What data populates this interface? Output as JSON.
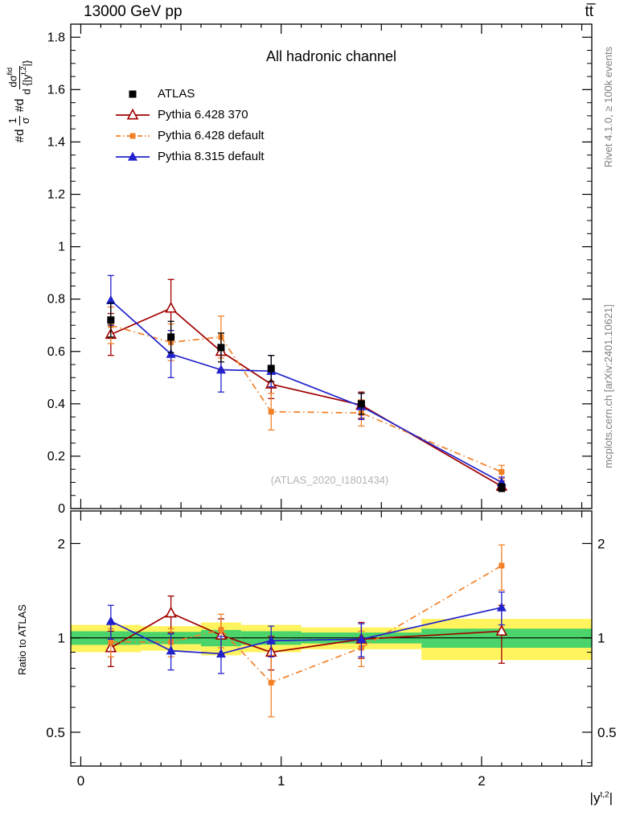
{
  "header": {
    "beam_label": "13000 GeV pp",
    "process_label": "tt̅"
  },
  "plot": {
    "title": "All hadronic channel",
    "watermark": "(ATLAS_2020_I1801434)",
    "xlabel": {
      "pre": "|y",
      "sup": "t,2",
      "post": "|"
    },
    "ylabel_main": {
      "d1": "#d",
      "frac1_num": "1",
      "frac1_den": "σ",
      "d2": "#d",
      "frac2_num_base": "dσ",
      "frac2_num_sup": "fid",
      "frac2_den_pre": "d {|y",
      "frac2_den_sup": "t,2",
      "frac2_den_post": "|}"
    },
    "ylabel_ratio": "Ratio to ATLAS"
  },
  "side_labels": {
    "rivet": "Rivet 4.1.0, ≥ 100k events",
    "mcplots": "mcplots.cern.ch [arXiv:2401.10621]"
  },
  "chart_data": {
    "type": "scatter",
    "title": "All hadronic channel",
    "xlabel": "|y^{t,2}|",
    "ylabel": "1/sigma dsigma^fid / d{|y^{t,2}|}",
    "xlim": [
      -0.05,
      2.55
    ],
    "x": [
      0.15,
      0.45,
      0.7,
      0.95,
      1.4,
      2.1
    ],
    "bin_edges": [
      0,
      0.3,
      0.6,
      0.8,
      1.1,
      1.7,
      2.5
    ],
    "xticks": {
      "major": [
        0,
        1,
        2
      ],
      "labels": [
        "0",
        "1",
        "2"
      ],
      "medium_step": 0.5,
      "minor_step": 0.1
    },
    "main": {
      "ylim": [
        0,
        1.85
      ],
      "ytick_values": [
        0,
        0.2,
        0.4,
        0.6,
        0.8,
        1,
        1.2,
        1.4,
        1.6,
        1.8
      ],
      "ytick_labels": [
        "0",
        "0.2",
        "0.4",
        "0.6",
        "0.8",
        "1",
        "1.2",
        "1.4",
        "1.6",
        "1.8"
      ],
      "yminor_step": 0.05,
      "series": [
        {
          "key": "atlas",
          "name": "ATLAS",
          "color": "#000000",
          "marker": "square-filled",
          "line": "none",
          "values": [
            0.72,
            0.655,
            0.615,
            0.535,
            0.4,
            0.08
          ],
          "errors": [
            0.065,
            0.06,
            0.055,
            0.05,
            0.04,
            0.015
          ]
        },
        {
          "key": "py6_370",
          "name": "Pythia 6.428 370",
          "color": "#a00000",
          "marker": "triangle-open",
          "line": "solid",
          "values": [
            0.665,
            0.765,
            0.6,
            0.475,
            0.395,
            0.085
          ],
          "errors": [
            0.08,
            0.11,
            0.07,
            0.055,
            0.05,
            0.02
          ]
        },
        {
          "key": "py6_def",
          "name": "Pythia 6.428 default",
          "color": "#f28027",
          "marker": "square-filled-small",
          "line": "dashdot",
          "values": [
            0.7,
            0.635,
            0.655,
            0.37,
            0.365,
            0.14
          ],
          "errors": [
            0.07,
            0.07,
            0.08,
            0.07,
            0.05,
            0.025
          ]
        },
        {
          "key": "py8_def",
          "name": "Pythia 8.315 default",
          "color": "#2222cc",
          "marker": "triangle-filled",
          "line": "solid",
          "values": [
            0.795,
            0.59,
            0.53,
            0.525,
            0.39,
            0.1
          ],
          "errors": [
            0.095,
            0.09,
            0.085,
            0.06,
            0.05,
            0.02
          ]
        }
      ]
    },
    "ratio": {
      "ylog": true,
      "ylim": [
        0.39,
        2.54
      ],
      "ytick_values": [
        0.5,
        1,
        2
      ],
      "ytick_labels": [
        "0.5",
        "1",
        "2"
      ],
      "yminor_values": [
        0.4,
        0.6,
        0.7,
        0.8,
        0.9
      ],
      "bands": {
        "yellow_color": "#fff45e",
        "green_color": "#4bd46b",
        "yellow": [
          [
            0.9,
            1.1
          ],
          [
            0.91,
            1.09
          ],
          [
            0.88,
            1.12
          ],
          [
            0.9,
            1.1
          ],
          [
            0.92,
            1.08
          ],
          [
            0.85,
            1.15
          ]
        ],
        "green": [
          [
            0.95,
            1.05
          ],
          [
            0.955,
            1.045
          ],
          [
            0.94,
            1.06
          ],
          [
            0.95,
            1.05
          ],
          [
            0.96,
            1.04
          ],
          [
            0.93,
            1.07
          ]
        ]
      },
      "series": [
        {
          "key": "py6_370",
          "values": [
            0.93,
            1.2,
            1.02,
            0.9,
            0.99,
            1.05
          ],
          "errors": [
            0.12,
            0.16,
            0.13,
            0.11,
            0.13,
            0.22
          ]
        },
        {
          "key": "py6_def",
          "values": [
            0.97,
            0.97,
            1.06,
            0.72,
            0.93,
            1.7
          ],
          "errors": [
            0.1,
            0.1,
            0.13,
            0.16,
            0.12,
            0.28
          ]
        },
        {
          "key": "py8_def",
          "values": [
            1.13,
            0.91,
            0.89,
            0.98,
            0.99,
            1.25
          ],
          "errors": [
            0.14,
            0.12,
            0.12,
            0.11,
            0.12,
            0.15
          ]
        }
      ]
    }
  }
}
